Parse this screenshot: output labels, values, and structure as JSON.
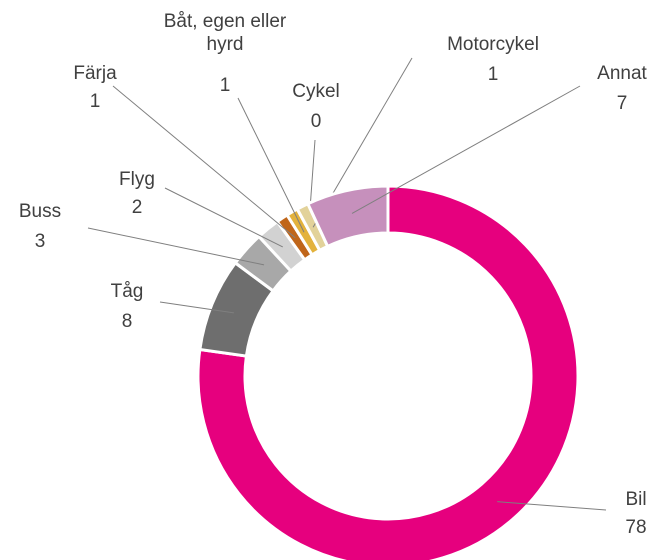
{
  "chart_data": {
    "type": "donut",
    "categories": [
      "Bil",
      "Tåg",
      "Buss",
      "Flyg",
      "Färja",
      "Båt, egen eller hyrd",
      "Cykel",
      "Motorcykel",
      "Annat"
    ],
    "values": [
      78,
      8,
      3,
      2,
      1,
      1,
      0,
      1,
      7
    ],
    "colors": [
      "#e6007e",
      "#6e6e6e",
      "#a8a8a8",
      "#d2d2d2",
      "#c0661a",
      "#e3b23c",
      "#dcc37a",
      "#e2d29a",
      "#c690bc"
    ]
  }
}
